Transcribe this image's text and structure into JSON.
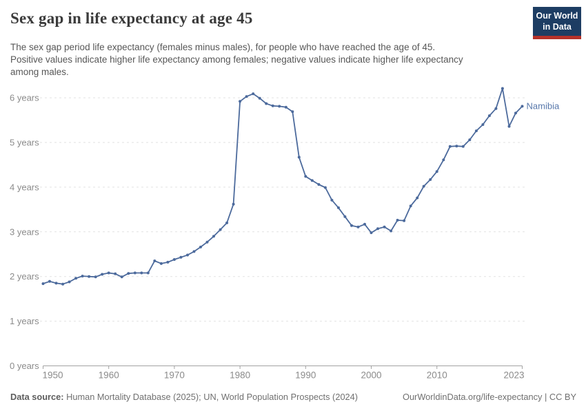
{
  "header": {
    "title": "Sex gap in life expectancy at age 45",
    "logo_line1": "Our World",
    "logo_line2": "in Data"
  },
  "subtitle": {
    "sentence1": "The sex gap period life expectancy (females minus males), for people who have reached the age of 45.",
    "sentence2": "Positive values indicate higher life expectancy among females; negative values indicate higher life expectancy among males."
  },
  "chart_data": {
    "type": "line",
    "title": "Sex gap in life expectancy at age 45",
    "xlabel": "",
    "ylabel": "",
    "xlim": [
      1950,
      2023
    ],
    "ylim": [
      0,
      6.4
    ],
    "grid": "horizontal-dashed",
    "legend_position": "end-of-line",
    "x_ticks": [
      1950,
      1960,
      1970,
      1980,
      1990,
      2000,
      2010,
      2023
    ],
    "x_tick_labels": [
      "1950",
      "1960",
      "1970",
      "1980",
      "1990",
      "2000",
      "2010",
      "2023"
    ],
    "y_ticks": [
      0,
      1,
      2,
      3,
      4,
      5,
      6
    ],
    "y_tick_labels": [
      "0 years",
      "1 years",
      "2 years",
      "3 years",
      "4 years",
      "5 years",
      "6 years"
    ],
    "series": [
      {
        "name": "Namibia",
        "color": "#4C6A9C",
        "label_color": "#5878ab",
        "x": [
          1950,
          1951,
          1952,
          1953,
          1954,
          1955,
          1956,
          1957,
          1958,
          1959,
          1960,
          1961,
          1962,
          1963,
          1964,
          1965,
          1966,
          1967,
          1968,
          1969,
          1970,
          1971,
          1972,
          1973,
          1974,
          1975,
          1976,
          1977,
          1978,
          1979,
          1980,
          1981,
          1982,
          1983,
          1984,
          1985,
          1986,
          1987,
          1988,
          1989,
          1990,
          1991,
          1992,
          1993,
          1994,
          1995,
          1996,
          1997,
          1998,
          1999,
          2000,
          2001,
          2002,
          2003,
          2004,
          2005,
          2006,
          2007,
          2008,
          2009,
          2010,
          2011,
          2012,
          2013,
          2014,
          2015,
          2016,
          2017,
          2018,
          2019,
          2020,
          2021,
          2022,
          2023
        ],
        "values": [
          1.84,
          1.89,
          1.85,
          1.83,
          1.88,
          1.96,
          2.01,
          2.0,
          1.99,
          2.05,
          2.08,
          2.06,
          1.99,
          2.07,
          2.08,
          2.08,
          2.08,
          2.35,
          2.29,
          2.32,
          2.38,
          2.43,
          2.48,
          2.56,
          2.66,
          2.77,
          2.9,
          3.05,
          3.2,
          3.62,
          5.92,
          6.03,
          6.09,
          5.99,
          5.87,
          5.82,
          5.81,
          5.79,
          5.69,
          4.67,
          4.24,
          4.15,
          4.06,
          3.99,
          3.71,
          3.54,
          3.34,
          3.14,
          3.11,
          3.17,
          2.98,
          3.07,
          3.11,
          3.02,
          3.26,
          3.25,
          3.58,
          3.76,
          4.02,
          4.17,
          4.35,
          4.61,
          4.91,
          4.92,
          4.91,
          5.06,
          5.26,
          5.4,
          5.6,
          5.76,
          6.21,
          5.36,
          5.66,
          5.81
        ]
      }
    ],
    "colors": {
      "gridline": "#e2e2e2",
      "axis": "#a1a1a1",
      "tick_label": "#8b8b8b"
    }
  },
  "footer": {
    "source_label": "Data source:",
    "source_text": " Human Mortality Database (2025); UN, World Population Prospects (2024)",
    "credit": "OurWorldinData.org/life-expectancy | CC BY"
  }
}
